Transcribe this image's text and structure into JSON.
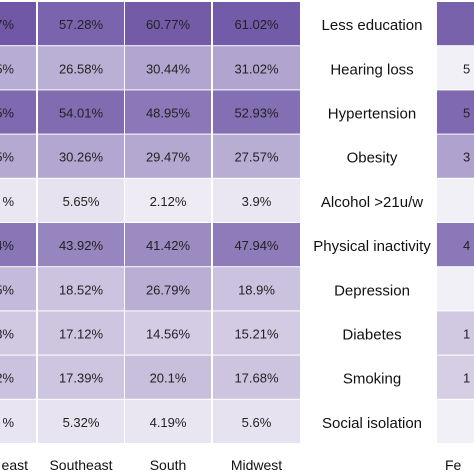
{
  "chart_data": {
    "type": "heatmap",
    "title": "",
    "xlabel": "",
    "ylabel": "",
    "columns_left": [
      "",
      "Southeast",
      "South",
      "Midwest"
    ],
    "column_header_partial_left": "east",
    "rows": [
      "Less education",
      "Hearing loss",
      "Hypertension",
      "Obesity",
      "Alcohol >21u/w",
      "Physical inactivity",
      "Depression",
      "Diabetes",
      "Smoking",
      "Social isolation"
    ],
    "partial_first_column_text": [
      "7%",
      "5%",
      "5%",
      "5%",
      "%",
      "4%",
      "5%",
      "3%",
      "2%",
      "%"
    ],
    "values": [
      [
        null,
        57.28,
        60.77,
        61.02
      ],
      [
        null,
        26.58,
        30.44,
        31.02
      ],
      [
        null,
        54.01,
        48.95,
        52.93
      ],
      [
        null,
        30.26,
        29.47,
        27.57
      ],
      [
        null,
        5.65,
        2.12,
        3.9
      ],
      [
        null,
        43.92,
        41.42,
        47.94
      ],
      [
        null,
        18.52,
        26.79,
        18.9
      ],
      [
        null,
        17.12,
        14.56,
        15.21
      ],
      [
        null,
        17.39,
        20.1,
        17.68
      ],
      [
        null,
        5.32,
        4.19,
        5.6
      ]
    ],
    "value_labels": [
      [
        "",
        "57.28%",
        "60.77%",
        "61.02%"
      ],
      [
        "",
        "26.58%",
        "30.44%",
        "31.02%"
      ],
      [
        "",
        "54.01%",
        "48.95%",
        "52.93%"
      ],
      [
        "",
        "30.26%",
        "29.47%",
        "27.57%"
      ],
      [
        "",
        "5.65%",
        "2.12%",
        "3.9%"
      ],
      [
        "",
        "43.92%",
        "41.42%",
        "47.94%"
      ],
      [
        "",
        "18.52%",
        "26.79%",
        "18.9%"
      ],
      [
        "",
        "17.12%",
        "14.56%",
        "15.21%"
      ],
      [
        "",
        "17.39%",
        "20.1%",
        "17.68%"
      ],
      [
        "",
        "5.32%",
        "4.19%",
        "5.6%"
      ]
    ],
    "right_partial_first_column_text": [
      "",
      "5",
      "5",
      "3",
      "",
      "4",
      "",
      "1",
      "1",
      ""
    ],
    "right_partial_header": "Fe",
    "colors": {
      "low": "#f2f0f7",
      "high": "#6a51a3"
    },
    "color_domain": [
      0,
      65
    ]
  }
}
